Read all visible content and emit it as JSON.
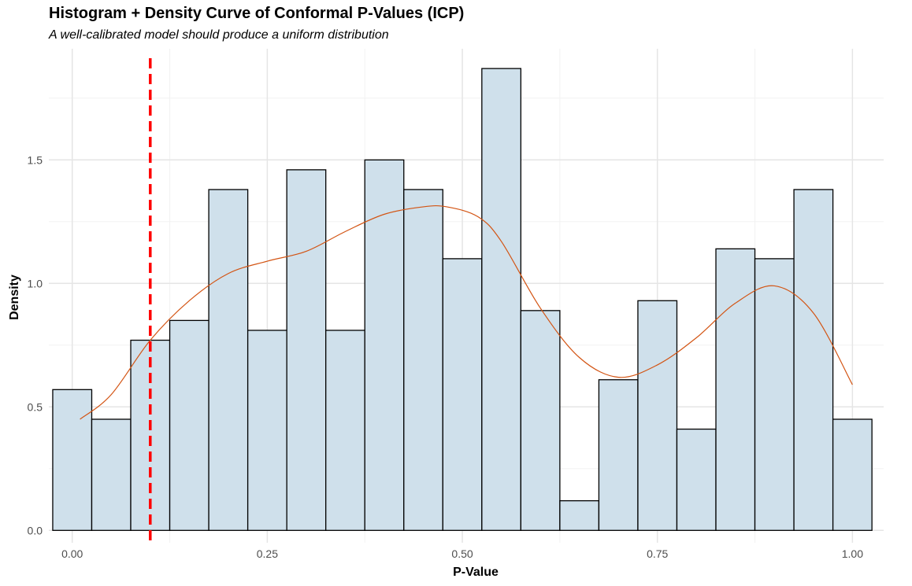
{
  "chart_data": {
    "type": "histogram",
    "title": "Histogram + Density Curve of Conformal P-Values (ICP)",
    "subtitle": "A well-calibrated model should produce a uniform distribution",
    "xlabel": "P-Value",
    "ylabel": "Density",
    "xlim": [
      -0.03,
      1.04
    ],
    "ylim": [
      -0.05,
      1.95
    ],
    "x_ticks": [
      0.0,
      0.25,
      0.5,
      0.75,
      1.0
    ],
    "x_tick_labels": [
      "0.00",
      "0.25",
      "0.50",
      "0.75",
      "1.00"
    ],
    "y_ticks": [
      0.0,
      0.5,
      1.0,
      1.5
    ],
    "y_tick_labels": [
      "0.0",
      "0.5",
      "1.0",
      "1.5"
    ],
    "grid": true,
    "bin_width": 0.05,
    "bins": [
      {
        "x0": -0.025,
        "x1": 0.025,
        "density": 0.57
      },
      {
        "x0": 0.025,
        "x1": 0.075,
        "density": 0.45
      },
      {
        "x0": 0.075,
        "x1": 0.125,
        "density": 0.77
      },
      {
        "x0": 0.125,
        "x1": 0.175,
        "density": 0.85
      },
      {
        "x0": 0.175,
        "x1": 0.225,
        "density": 1.38
      },
      {
        "x0": 0.225,
        "x1": 0.275,
        "density": 0.81
      },
      {
        "x0": 0.275,
        "x1": 0.325,
        "density": 1.46
      },
      {
        "x0": 0.325,
        "x1": 0.375,
        "density": 0.81
      },
      {
        "x0": 0.375,
        "x1": 0.425,
        "density": 1.5
      },
      {
        "x0": 0.425,
        "x1": 0.475,
        "density": 1.38
      },
      {
        "x0": 0.475,
        "x1": 0.525,
        "density": 1.1
      },
      {
        "x0": 0.525,
        "x1": 0.575,
        "density": 1.87
      },
      {
        "x0": 0.575,
        "x1": 0.625,
        "density": 0.89
      },
      {
        "x0": 0.625,
        "x1": 0.675,
        "density": 0.12
      },
      {
        "x0": 0.675,
        "x1": 0.725,
        "density": 0.61
      },
      {
        "x0": 0.725,
        "x1": 0.775,
        "density": 0.93
      },
      {
        "x0": 0.775,
        "x1": 0.825,
        "density": 0.41
      },
      {
        "x0": 0.825,
        "x1": 0.875,
        "density": 1.14
      },
      {
        "x0": 0.875,
        "x1": 0.925,
        "density": 1.1
      },
      {
        "x0": 0.925,
        "x1": 0.975,
        "density": 1.38
      },
      {
        "x0": 0.975,
        "x1": 1.025,
        "density": 0.45
      }
    ],
    "density_curve": {
      "x": [
        0.01,
        0.05,
        0.1,
        0.15,
        0.2,
        0.25,
        0.3,
        0.35,
        0.4,
        0.45,
        0.48,
        0.52,
        0.55,
        0.6,
        0.65,
        0.7,
        0.75,
        0.8,
        0.85,
        0.9,
        0.95,
        1.0
      ],
      "y": [
        0.45,
        0.55,
        0.77,
        0.93,
        1.04,
        1.09,
        1.13,
        1.21,
        1.28,
        1.31,
        1.31,
        1.27,
        1.17,
        0.9,
        0.7,
        0.62,
        0.67,
        0.78,
        0.92,
        0.99,
        0.88,
        0.59
      ]
    },
    "threshold_line": {
      "x": 0.1
    },
    "colors": {
      "bar_fill": "#cfe0eb",
      "bar_stroke": "#000000",
      "density": "#d35413",
      "threshold": "#ff0000",
      "grid_major": "#e5e5e5",
      "grid_minor": "#f2f2f2"
    }
  }
}
